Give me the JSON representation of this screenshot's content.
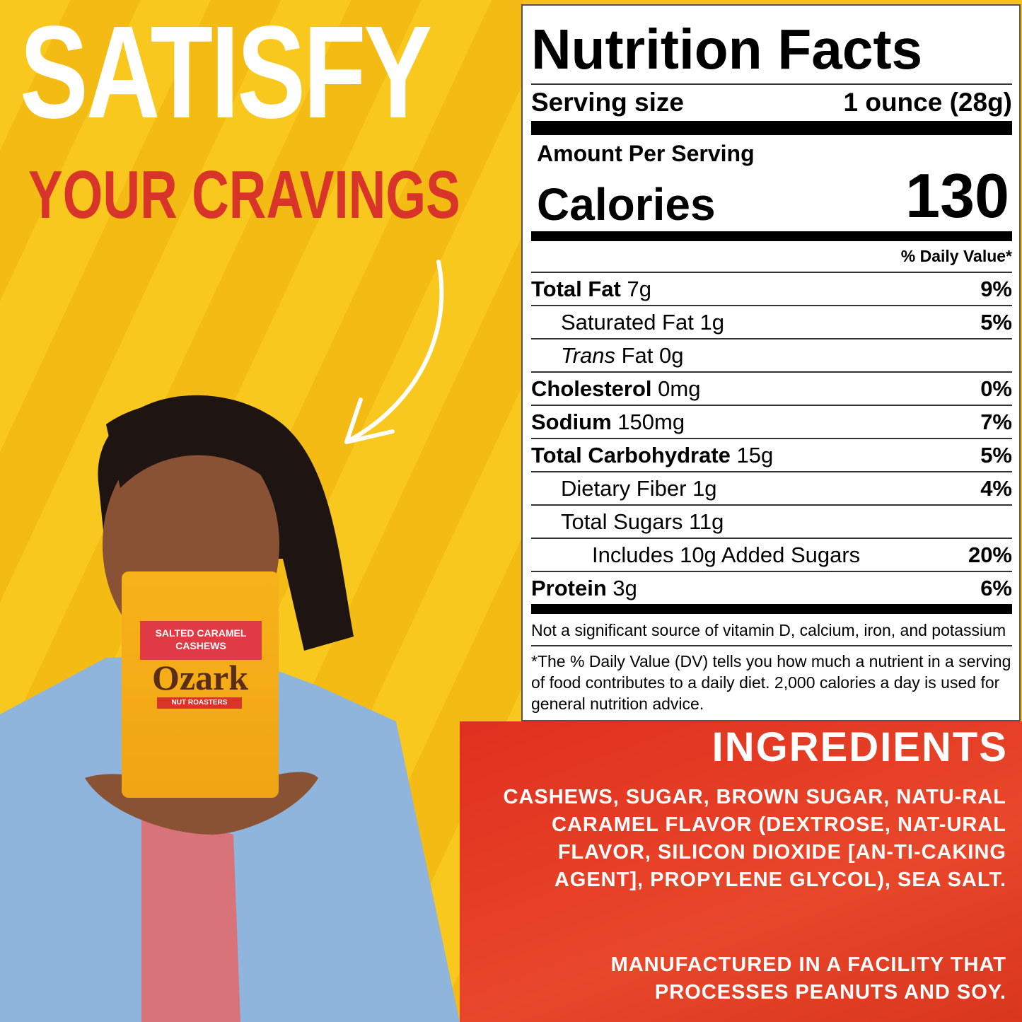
{
  "headline": {
    "line1": "SATISFY",
    "line2": "YOUR CRAVINGS"
  },
  "product": {
    "flavor_line1": "SALTED CARAMEL",
    "flavor_line2": "CASHEWS",
    "brand": "Ozark",
    "brand_sub": "NUT ROASTERS"
  },
  "nutrition": {
    "title": "Nutrition Facts",
    "serving_label": "Serving size",
    "serving_value": "1 ounce (28g)",
    "amount_per_serving": "Amount Per Serving",
    "calories_label": "Calories",
    "calories_value": "130",
    "dv_header": "% Daily Value*",
    "rows": [
      {
        "name": "Total Fat",
        "amount": "7g",
        "dv": "9%"
      },
      {
        "name": "Saturated Fat",
        "amount": "1g",
        "dv": "5%"
      },
      {
        "name": "Trans",
        "name2": "Fat",
        "amount": "0g",
        "dv": ""
      },
      {
        "name": "Cholesterol",
        "amount": "0mg",
        "dv": "0%"
      },
      {
        "name": "Sodium",
        "amount": "150mg",
        "dv": "7%"
      },
      {
        "name": "Total Carbohydrate",
        "amount": "15g",
        "dv": "5%"
      },
      {
        "name": "Dietary Fiber",
        "amount": "1g",
        "dv": "4%"
      },
      {
        "name": "Total Sugars",
        "amount": "11g",
        "dv": ""
      },
      {
        "name": "Includes 10g Added Sugars",
        "amount": "",
        "dv": "20%"
      },
      {
        "name": "Protein",
        "amount": "3g",
        "dv": "6%"
      }
    ],
    "footnote1": "Not a significant source of vitamin D, calcium, iron, and potassium",
    "footnote2": "*The % Daily Value (DV) tells you how much a nutrient in a serving of food contributes to a daily diet. 2,000 calories a day is used for general nutrition advice."
  },
  "ingredients": {
    "title": "INGREDIENTS",
    "text": "CASHEWS, SUGAR, BROWN SUGAR, NATU-RAL CARAMEL FLAVOR (DEXTROSE, NAT-URAL FLAVOR, SILICON DIOXIDE [AN-TI-CAKING AGENT], PROPYLENE GLYCOL), SEA SALT.",
    "allergen": "MANUFACTURED IN A FACILITY THAT PROCESSES PEANUTS AND SOY."
  },
  "colors": {
    "yellow": "#f6c21a",
    "red": "#e0301f",
    "headline_red": "#d9342a"
  }
}
